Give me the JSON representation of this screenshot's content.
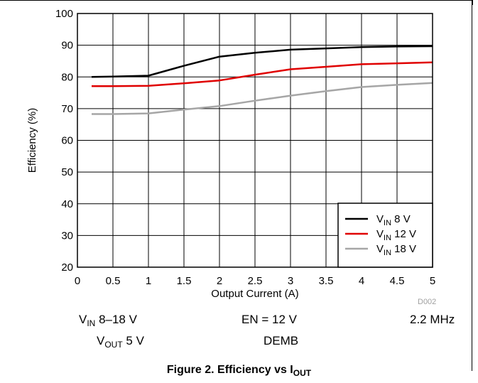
{
  "chart_data": {
    "type": "line",
    "xlabel": "Output Current (A)",
    "ylabel": "Efficiency (%)",
    "xlim": [
      0,
      5
    ],
    "ylim": [
      20,
      100
    ],
    "xticks": [
      "0",
      "0.5",
      "1",
      "1.5",
      "2",
      "2.5",
      "3",
      "3.5",
      "4",
      "4.5",
      "5"
    ],
    "yticks": [
      "20",
      "30",
      "40",
      "50",
      "60",
      "70",
      "80",
      "90",
      "100"
    ],
    "grid": true,
    "legend_position": "bottom-right",
    "series": [
      {
        "name": "VIN 8 V",
        "name_parts": {
          "main": "V",
          "sub": "IN",
          "rest": " 8 V"
        },
        "color": "#000000",
        "x": [
          0.2,
          0.5,
          1.0,
          1.5,
          2.0,
          2.5,
          3.0,
          3.5,
          4.0,
          4.5,
          5.0
        ],
        "y": [
          80.0,
          80.1,
          80.4,
          83.5,
          86.4,
          87.6,
          88.6,
          89.0,
          89.4,
          89.6,
          89.7
        ]
      },
      {
        "name": "VIN 12 V",
        "name_parts": {
          "main": "V",
          "sub": "IN",
          "rest": " 12 V"
        },
        "color": "#e00000",
        "x": [
          0.2,
          0.5,
          1.0,
          1.5,
          2.0,
          2.5,
          3.0,
          3.5,
          4.0,
          4.5,
          5.0
        ],
        "y": [
          77.1,
          77.1,
          77.2,
          78.0,
          78.9,
          80.7,
          82.4,
          83.2,
          84.0,
          84.3,
          84.6
        ]
      },
      {
        "name": "VIN 18 V",
        "name_parts": {
          "main": "V",
          "sub": "IN",
          "rest": " 18 V"
        },
        "color": "#a6a6a6",
        "x": [
          0.2,
          0.5,
          1.0,
          1.5,
          2.0,
          2.5,
          3.0,
          3.5,
          4.0,
          4.5,
          5.0
        ],
        "y": [
          68.3,
          68.3,
          68.5,
          69.7,
          70.8,
          72.5,
          74.1,
          75.5,
          76.8,
          77.5,
          78.1
        ]
      }
    ]
  },
  "figure_code": "D002",
  "conditions": {
    "vin_main": "V",
    "vin_sub": "IN",
    "vin_rest": " 8–18 V",
    "vout_main": "V",
    "vout_sub": "OUT",
    "vout_rest": " 5 V",
    "en": "EN = 12 V",
    "mode": "DEMB",
    "freq": "2.2 MHz"
  },
  "caption": {
    "main": "Figure 2. Efficiency vs I",
    "sub": "OUT"
  }
}
